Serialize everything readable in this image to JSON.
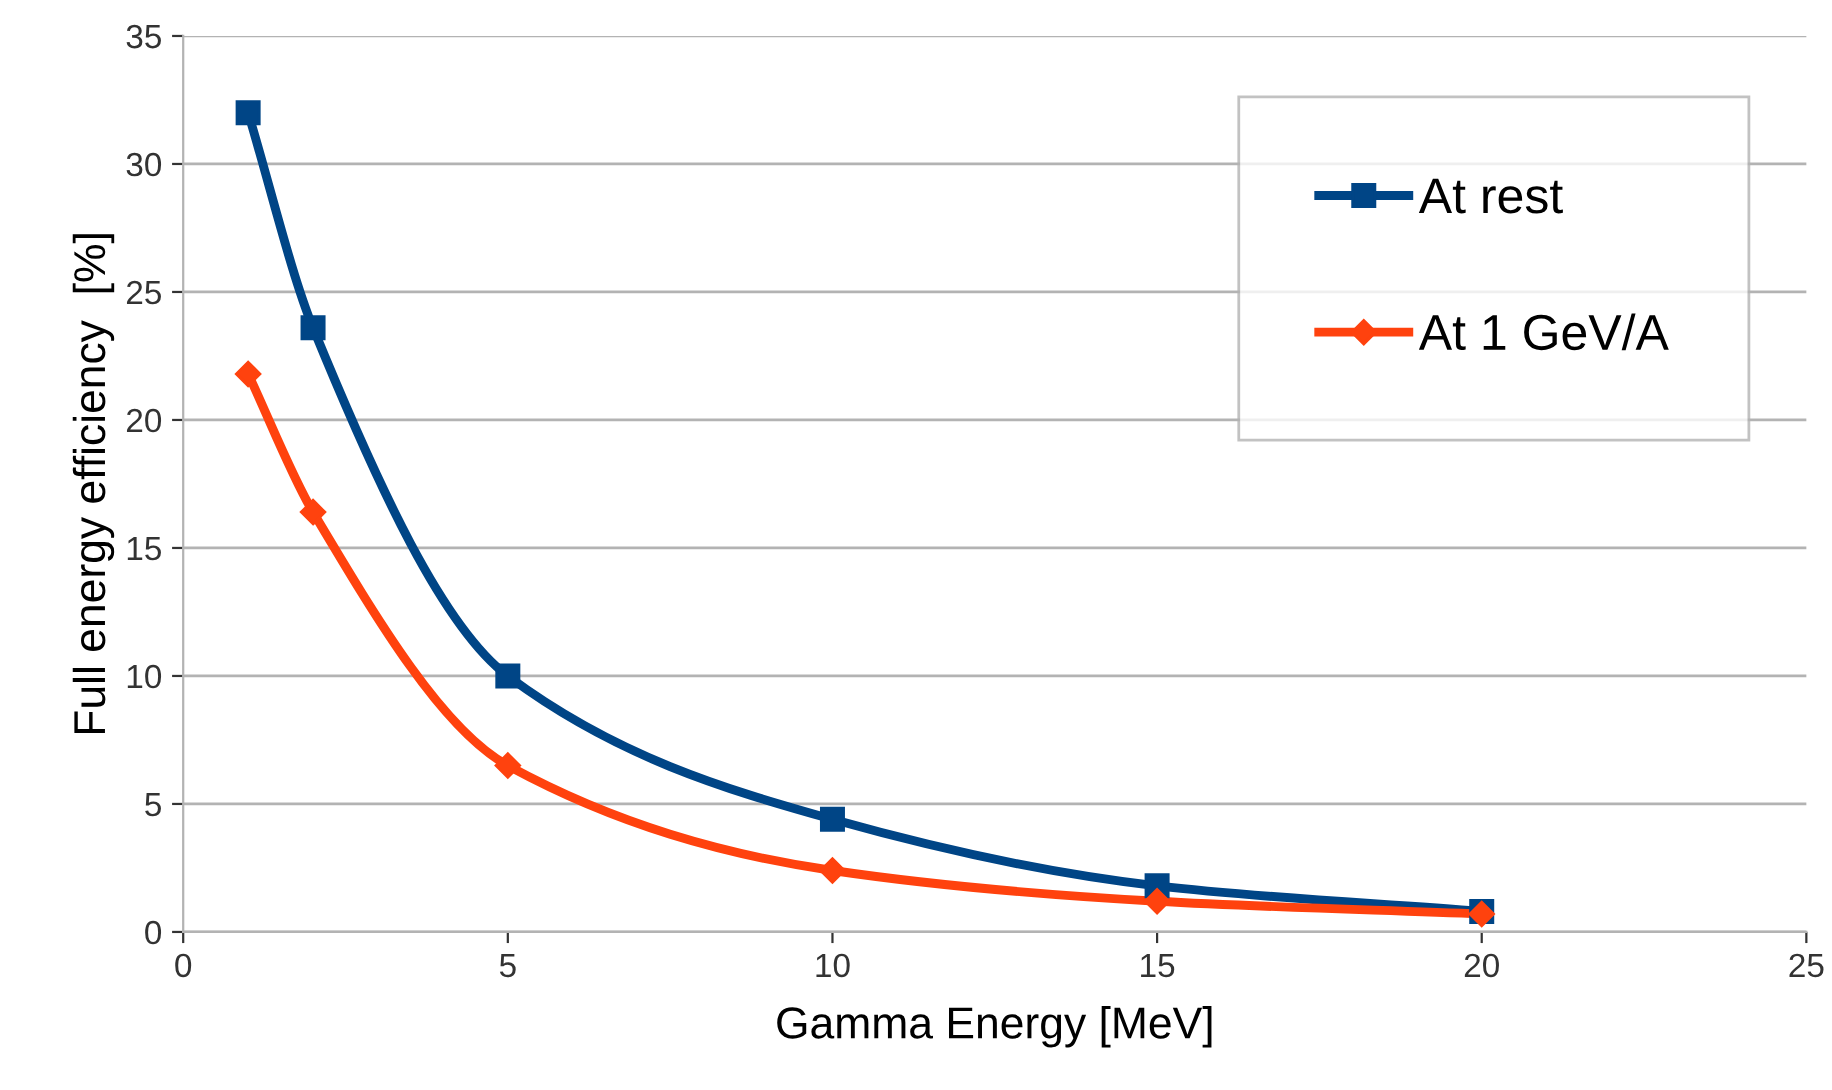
{
  "chart_data": {
    "type": "line",
    "xlabel": "Gamma Energy [MeV]",
    "ylabel": "Full energy efficiency  [%]",
    "x": [
      1,
      2,
      5,
      10,
      15,
      20
    ],
    "series": [
      {
        "name": "At rest",
        "color": "#004586",
        "marker": "square",
        "values": [
          32.0,
          23.6,
          10.0,
          4.4,
          1.8,
          0.8
        ]
      },
      {
        "name": "At 1 GeV/A",
        "color": "#ff420e",
        "marker": "diamond",
        "values": [
          21.8,
          16.4,
          6.5,
          2.4,
          1.2,
          0.7
        ]
      }
    ],
    "xlim": [
      0,
      25
    ],
    "xticks": [
      0,
      5,
      10,
      15,
      20,
      25
    ],
    "ylim": [
      0,
      35
    ],
    "yticks": [
      0,
      5,
      10,
      15,
      20,
      25,
      30,
      35
    ],
    "grid": "y",
    "legend": "top right",
    "line_style": "solid"
  }
}
